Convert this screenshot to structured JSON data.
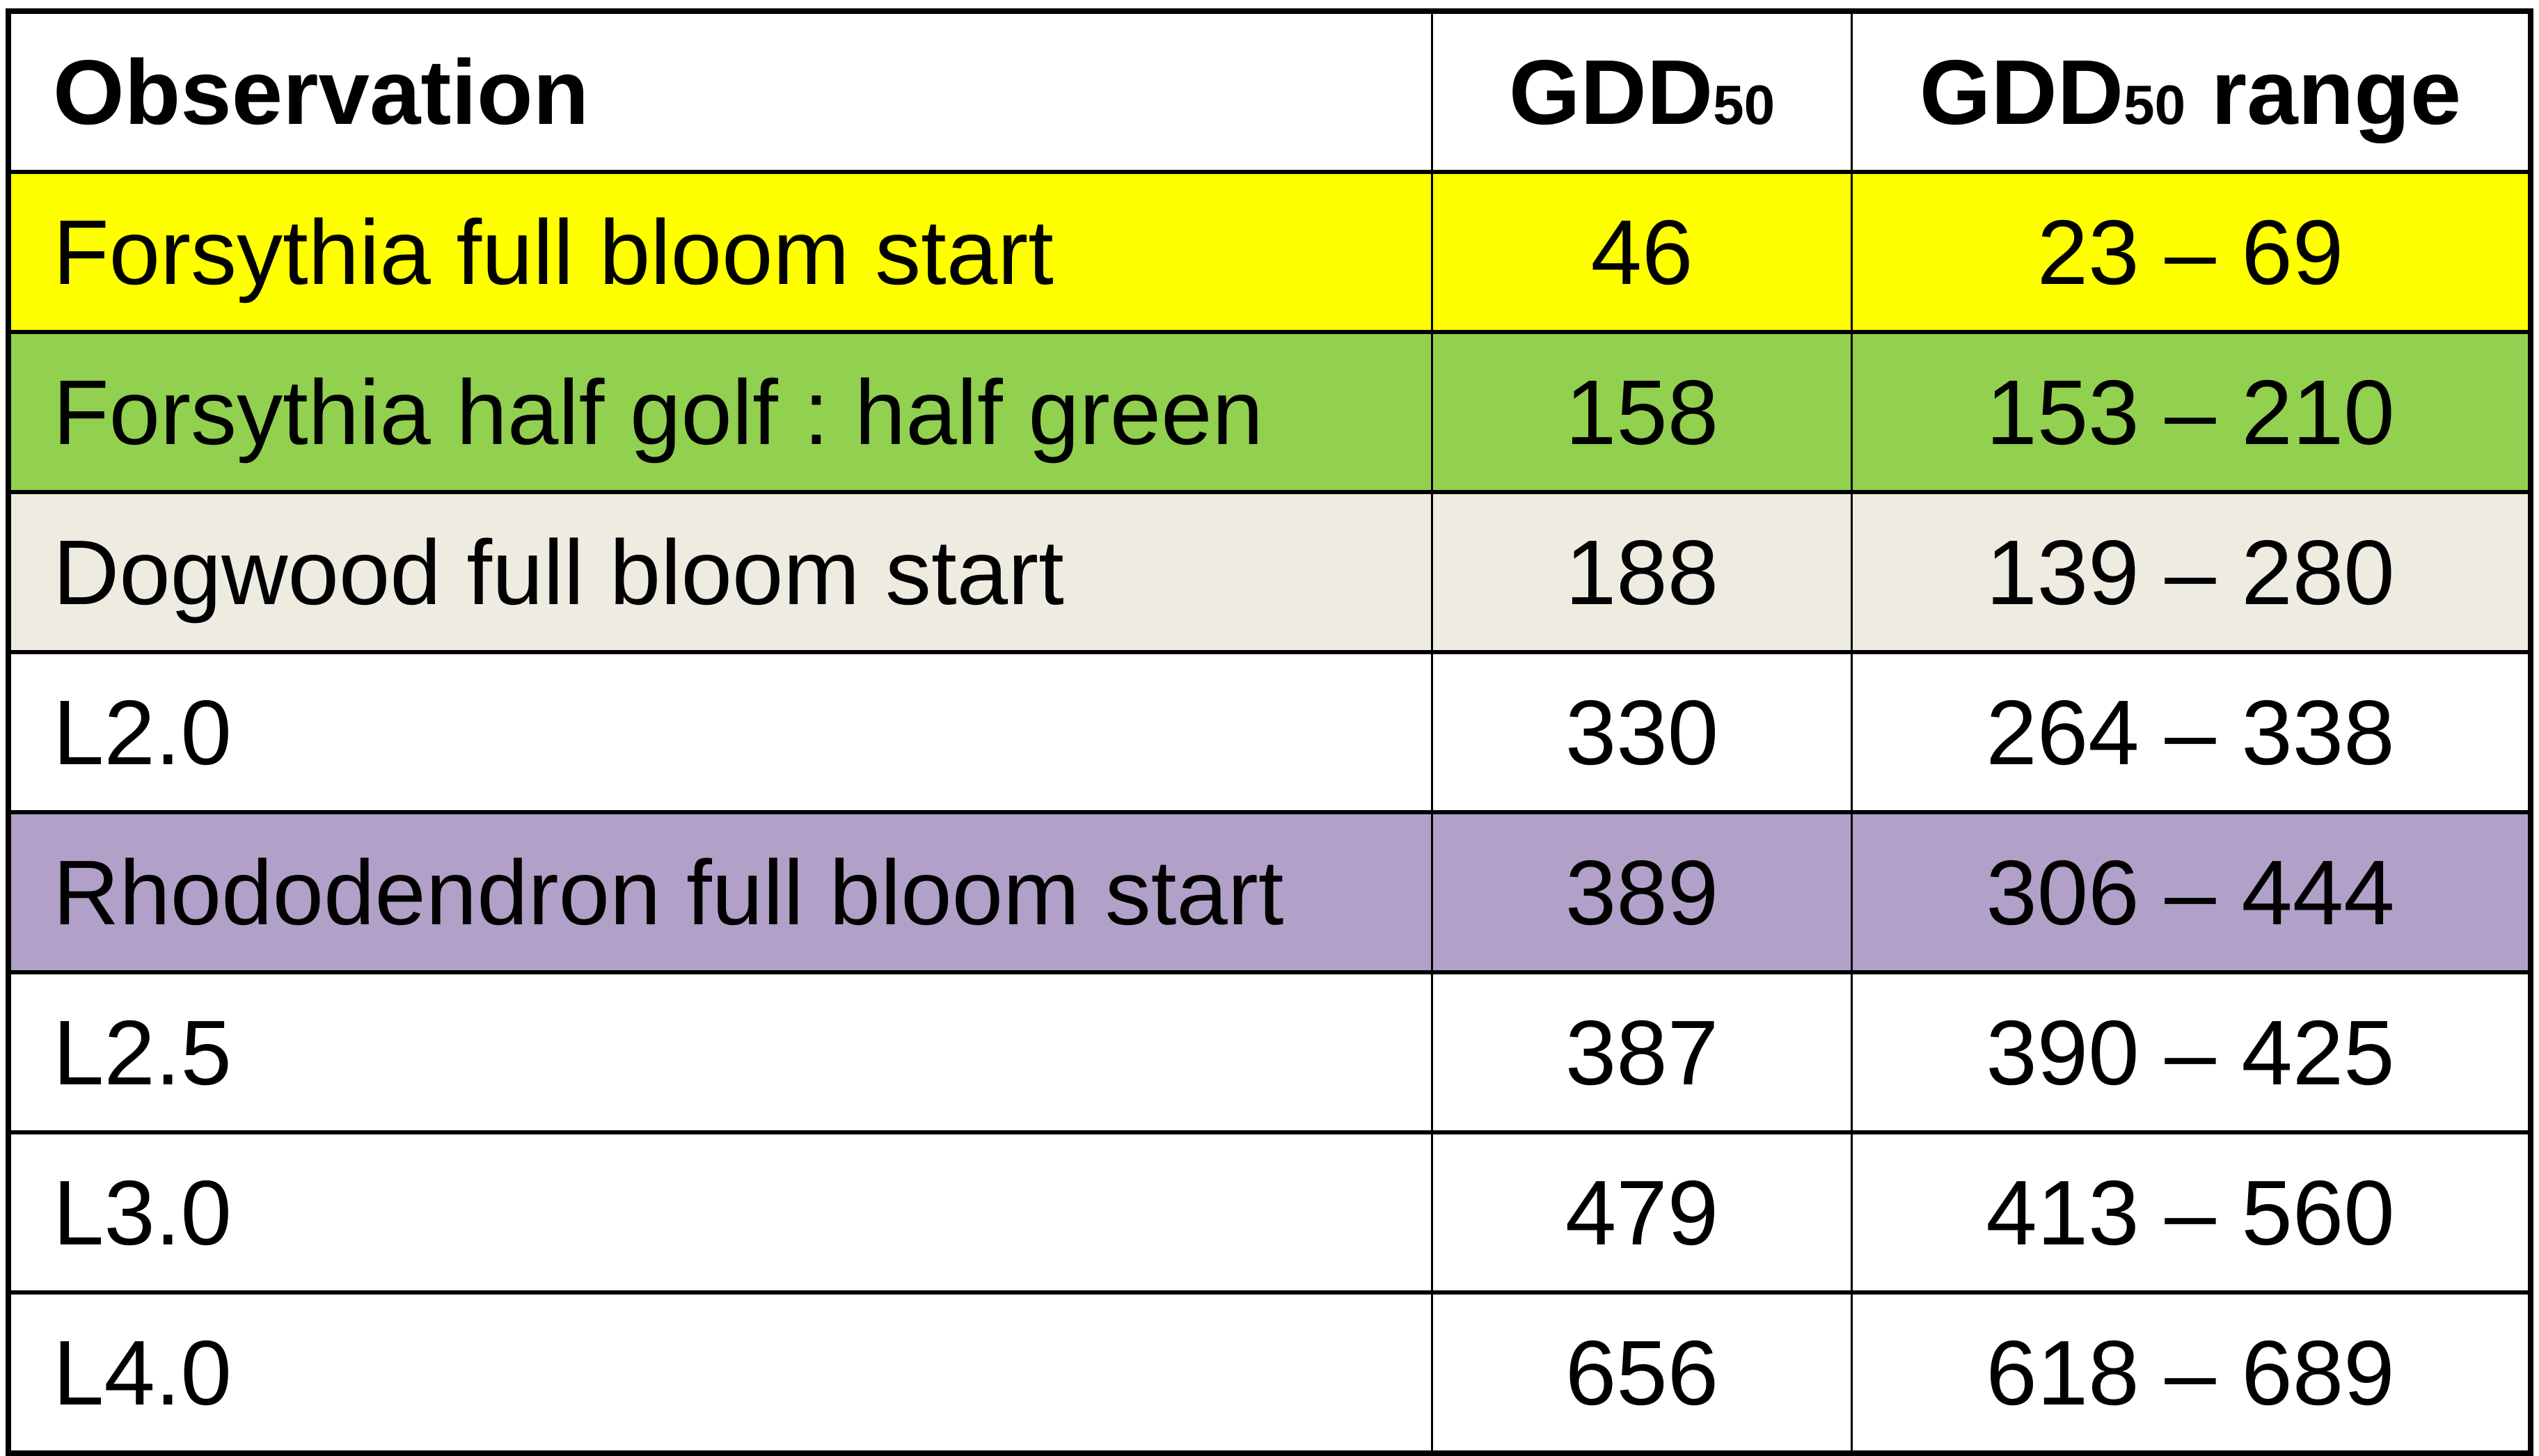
{
  "header": {
    "observation": "Observation",
    "gdd": "GDD",
    "gdd_sub": "50",
    "range": "GDD",
    "range_sub": "50",
    "range_suffix": " range"
  },
  "rows": [
    {
      "observation": "Forsythia full bloom start",
      "gdd": "46",
      "range": "23 – 69",
      "color": "#FFFF00"
    },
    {
      "observation": "Forsythia half golf : half green",
      "gdd": "158",
      "range": "153 – 210",
      "color": "#92D050"
    },
    {
      "observation": "Dogwood full bloom start",
      "gdd": "188",
      "range": "139 – 280",
      "color": "#EEECE1"
    },
    {
      "observation": "L2.0",
      "gdd": "330",
      "range": "264 – 338",
      "color": "#FFFFFF"
    },
    {
      "observation": "Rhododendron full bloom start",
      "gdd": "389",
      "range": "306 – 444",
      "color": "#B1A0C7"
    },
    {
      "observation": "L2.5",
      "gdd": "387",
      "range": "390 – 425",
      "color": "#FFFFFF"
    },
    {
      "observation": "L3.0",
      "gdd": "479",
      "range": "413 – 560",
      "color": "#FFFFFF"
    },
    {
      "observation": "L4.0",
      "gdd": "656",
      "range": "618 – 689",
      "color": "#FFFFFF"
    }
  ]
}
